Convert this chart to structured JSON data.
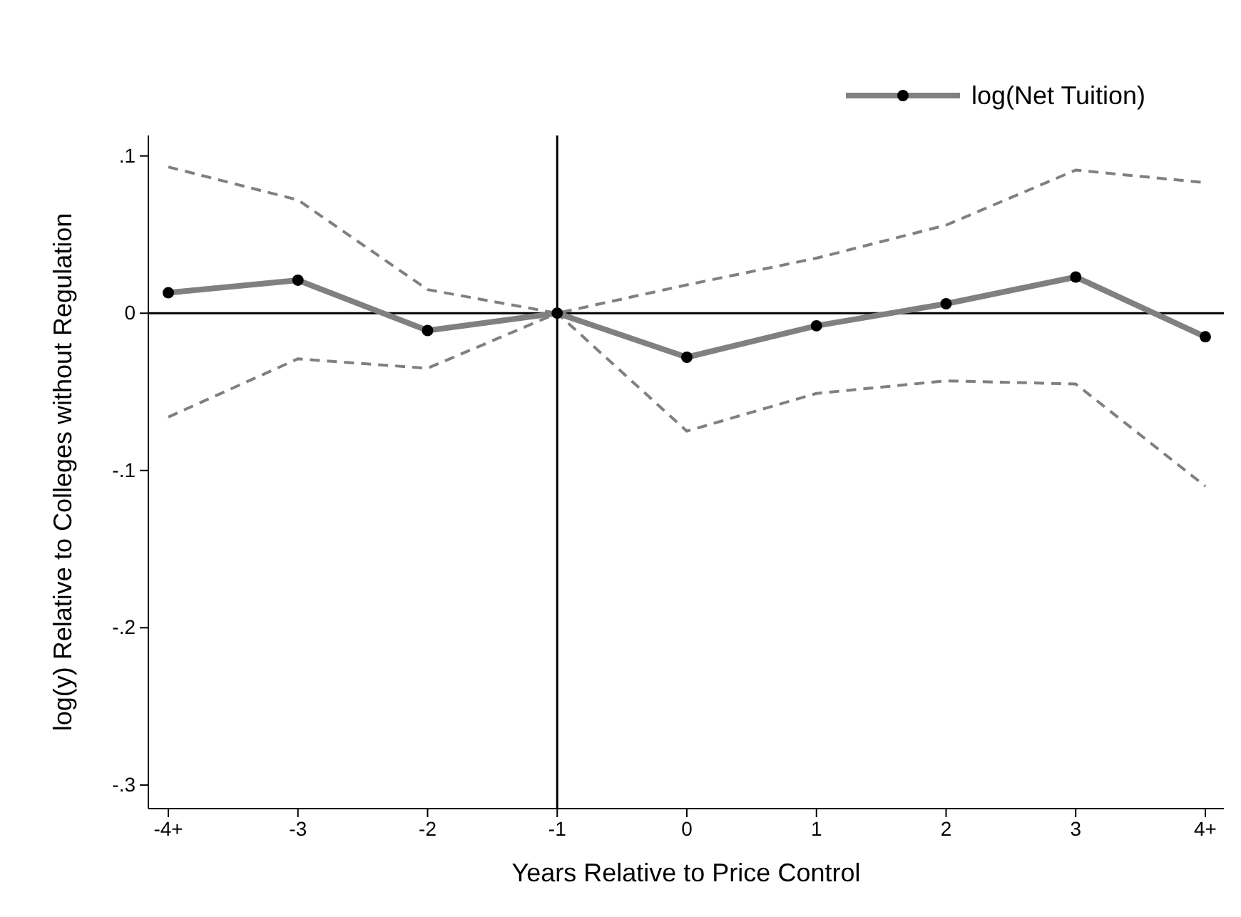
{
  "chart_data": {
    "type": "line",
    "xlabel": "Years Relative to Price Control",
    "ylabel": "log(y) Relative to Colleges without Regulation",
    "categories": [
      "-4+",
      "-3",
      "-2",
      "-1",
      "0",
      "1",
      "2",
      "3",
      "4+"
    ],
    "series": [
      {
        "color": "#808080",
        "line_style": "dashed",
        "marker": "none",
        "values": [
          -0.066,
          -0.029,
          -0.035,
          0,
          -0.075,
          -0.051,
          -0.043,
          -0.045,
          -0.11
        ]
      },
      {
        "color": "#808080",
        "line_style": "dashed",
        "marker": "none",
        "values": [
          0.093,
          0.072,
          0.015,
          0,
          0.018,
          0.035,
          0.056,
          0.091,
          0.083
        ]
      },
      {
        "name": "log(Net Tuition)",
        "color": "#808080",
        "values": [
          0.013,
          0.021,
          -0.011,
          0,
          -0.028,
          -0.008,
          0.006,
          0.023,
          -0.015
        ]
      }
    ],
    "ylim": [
      -0.315,
      0.113
    ],
    "yticks": [
      {
        "value": -0.3,
        "label": "-.3"
      },
      {
        "value": -0.2,
        "label": "-.2"
      },
      {
        "value": -0.1,
        "label": "-.1"
      },
      0,
      {
        "value": 0.1,
        "label": ".1"
      }
    ],
    "ref_lines": [
      {
        "axis": "y",
        "value": 0,
        "color": "#000000"
      },
      {
        "axis": "x",
        "value": "-1",
        "color": "#000000"
      }
    ],
    "grid": false,
    "legend": "top right",
    "marker": "circle",
    "line_style": "solid"
  }
}
